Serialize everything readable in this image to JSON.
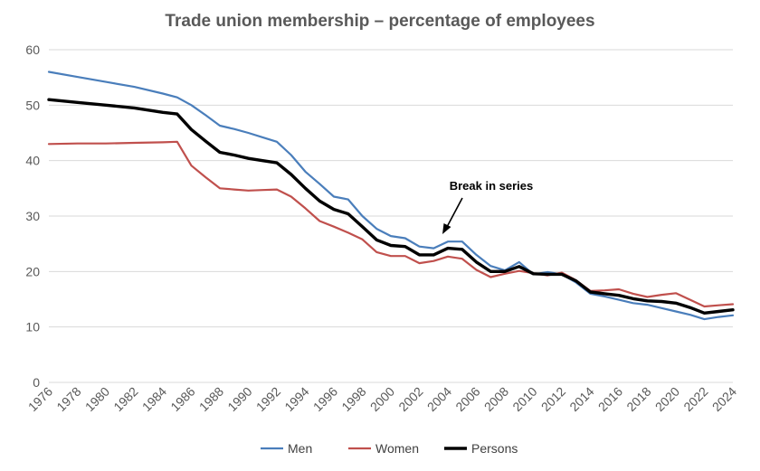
{
  "chart_data": {
    "type": "line",
    "title": "Trade union membership – percentage of employees",
    "xlabel": "",
    "ylabel": "",
    "ylim": [
      0,
      60
    ],
    "y_ticks": [
      "0",
      "10",
      "20",
      "30",
      "40",
      "50",
      "60"
    ],
    "x_tick_labels": [
      "1976",
      "1978",
      "1980",
      "1982",
      "1984",
      "1986",
      "1988",
      "1990",
      "1992",
      "1994",
      "1996",
      "1998",
      "2000",
      "2002",
      "2004",
      "2006",
      "2008",
      "2010",
      "2012",
      "2014",
      "2016",
      "2018",
      "2020",
      "2022",
      "2024"
    ],
    "grid": "horizontal",
    "legend_position": "bottom",
    "annotation": "Break in series",
    "series": [
      {
        "name": "Men",
        "color": "#4a7ebb",
        "points": [
          [
            1976,
            56
          ],
          [
            1978,
            55.1
          ],
          [
            1980,
            54.2
          ],
          [
            1982,
            53.3
          ],
          [
            1984,
            52.1
          ],
          [
            1985,
            51.4
          ],
          [
            1986,
            50
          ],
          [
            1987,
            48.2
          ],
          [
            1988,
            46.3
          ],
          [
            1989,
            45.7
          ],
          [
            1990,
            45
          ],
          [
            1991,
            44.2
          ],
          [
            1992,
            43.4
          ],
          [
            1993,
            41
          ],
          [
            1994,
            38
          ],
          [
            1995,
            35.8
          ],
          [
            1996,
            33.5
          ],
          [
            1997,
            33
          ],
          [
            1998,
            30
          ],
          [
            1999,
            27.7
          ],
          [
            2000,
            26.4
          ],
          [
            2001,
            26
          ],
          [
            2002,
            24.5
          ],
          [
            2003,
            24.2
          ],
          [
            2004,
            25.4
          ],
          [
            2005,
            25.4
          ],
          [
            2006,
            23
          ],
          [
            2007,
            21
          ],
          [
            2008,
            20.2
          ],
          [
            2009,
            21.7
          ],
          [
            2010,
            19.5
          ],
          [
            2011,
            19.9
          ],
          [
            2012,
            19.5
          ],
          [
            2013,
            18
          ],
          [
            2014,
            16
          ],
          [
            2015,
            15.5
          ],
          [
            2016,
            14.9
          ],
          [
            2017,
            14.3
          ],
          [
            2018,
            14
          ],
          [
            2019,
            13.4
          ],
          [
            2020,
            12.8
          ],
          [
            2021,
            12.2
          ],
          [
            2022,
            11.4
          ],
          [
            2023,
            11.8
          ],
          [
            2024,
            12.1
          ]
        ]
      },
      {
        "name": "Women",
        "color": "#c0504d",
        "points": [
          [
            1976,
            43
          ],
          [
            1978,
            43.1
          ],
          [
            1980,
            43.1
          ],
          [
            1982,
            43.2
          ],
          [
            1984,
            43.3
          ],
          [
            1985,
            43.4
          ],
          [
            1986,
            39.1
          ],
          [
            1987,
            37
          ],
          [
            1988,
            35
          ],
          [
            1989,
            34.8
          ],
          [
            1990,
            34.6
          ],
          [
            1991,
            34.7
          ],
          [
            1992,
            34.8
          ],
          [
            1993,
            33.5
          ],
          [
            1994,
            31.4
          ],
          [
            1995,
            29.1
          ],
          [
            1996,
            28.1
          ],
          [
            1997,
            27
          ],
          [
            1998,
            25.8
          ],
          [
            1999,
            23.5
          ],
          [
            2000,
            22.8
          ],
          [
            2001,
            22.8
          ],
          [
            2002,
            21.5
          ],
          [
            2003,
            21.9
          ],
          [
            2004,
            22.7
          ],
          [
            2005,
            22.3
          ],
          [
            2006,
            20.3
          ],
          [
            2007,
            19
          ],
          [
            2008,
            19.6
          ],
          [
            2009,
            20.1
          ],
          [
            2010,
            19.7
          ],
          [
            2011,
            19.3
          ],
          [
            2012,
            19.8
          ],
          [
            2013,
            18.4
          ],
          [
            2014,
            16.5
          ],
          [
            2015,
            16.6
          ],
          [
            2016,
            16.8
          ],
          [
            2017,
            16
          ],
          [
            2018,
            15.4
          ],
          [
            2019,
            15.8
          ],
          [
            2020,
            16.1
          ],
          [
            2021,
            14.9
          ],
          [
            2022,
            13.7
          ],
          [
            2023,
            13.9
          ],
          [
            2024,
            14.1
          ]
        ]
      },
      {
        "name": "Persons",
        "color": "#000000",
        "points": [
          [
            1976,
            51
          ],
          [
            1978,
            50.5
          ],
          [
            1980,
            50
          ],
          [
            1982,
            49.5
          ],
          [
            1984,
            48.7
          ],
          [
            1985,
            48.4
          ],
          [
            1986,
            45.6
          ],
          [
            1987,
            43.5
          ],
          [
            1988,
            41.5
          ],
          [
            1989,
            41
          ],
          [
            1990,
            40.4
          ],
          [
            1991,
            40
          ],
          [
            1992,
            39.6
          ],
          [
            1993,
            37.5
          ],
          [
            1994,
            35
          ],
          [
            1995,
            32.7
          ],
          [
            1996,
            31.2
          ],
          [
            1997,
            30.4
          ],
          [
            1998,
            28.1
          ],
          [
            1999,
            25.7
          ],
          [
            2000,
            24.7
          ],
          [
            2001,
            24.5
          ],
          [
            2002,
            23
          ],
          [
            2003,
            23
          ],
          [
            2004,
            24.2
          ],
          [
            2005,
            24
          ],
          [
            2006,
            21.7
          ],
          [
            2007,
            20
          ],
          [
            2008,
            20
          ],
          [
            2009,
            20.9
          ],
          [
            2010,
            19.6
          ],
          [
            2011,
            19.5
          ],
          [
            2012,
            19.5
          ],
          [
            2013,
            18.3
          ],
          [
            2014,
            16.3
          ],
          [
            2015,
            16
          ],
          [
            2016,
            15.7
          ],
          [
            2017,
            15.1
          ],
          [
            2018,
            14.7
          ],
          [
            2019,
            14.6
          ],
          [
            2020,
            14.3
          ],
          [
            2021,
            13.5
          ],
          [
            2022,
            12.5
          ],
          [
            2023,
            12.8
          ],
          [
            2024,
            13.1
          ]
        ]
      }
    ]
  }
}
